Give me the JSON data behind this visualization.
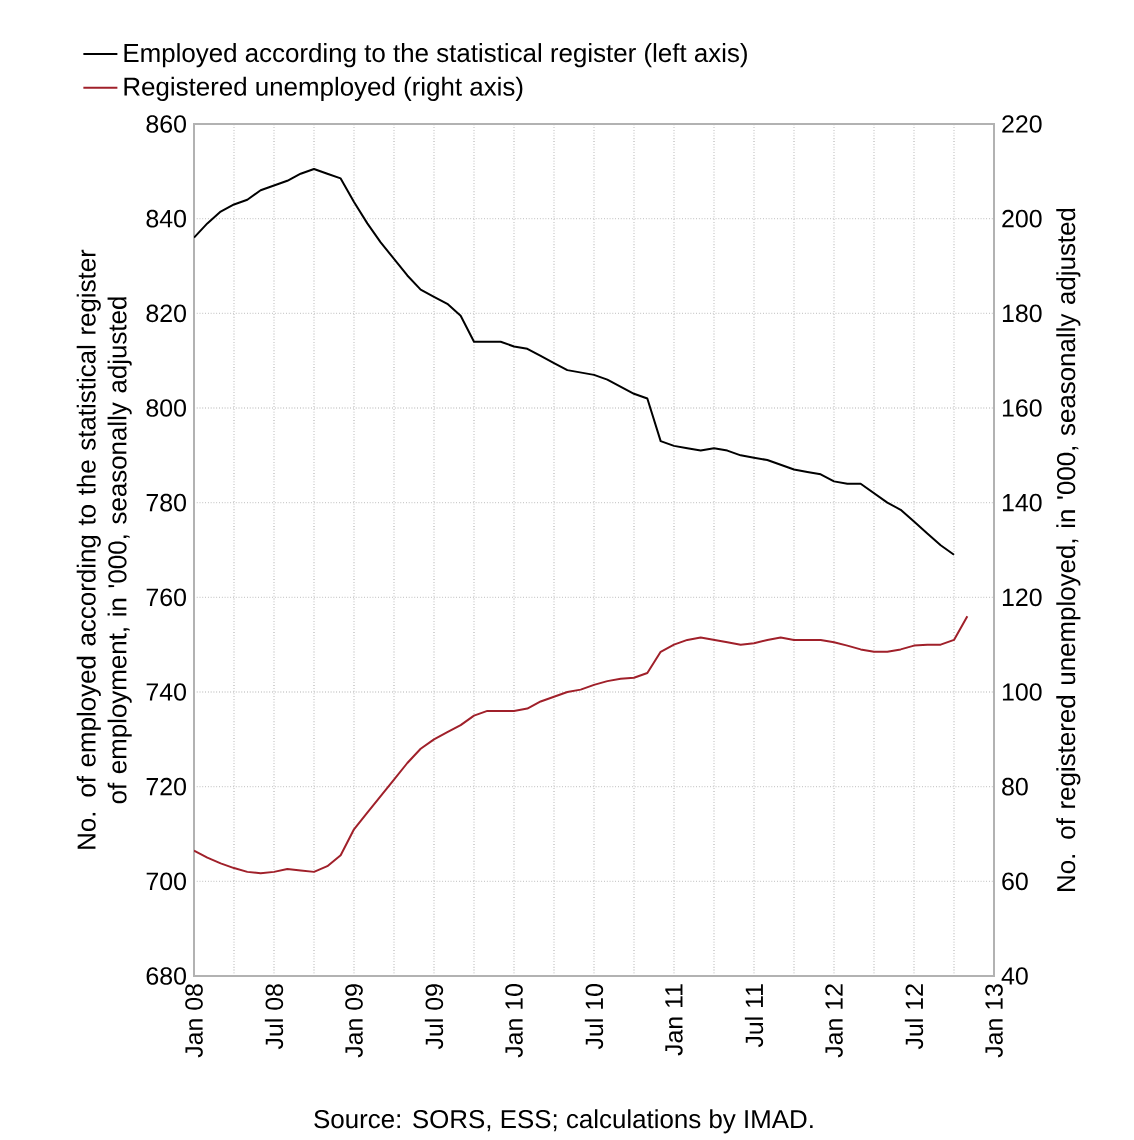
{
  "chart_data": {
    "type": "line",
    "xlim": [
      "2008-01",
      "2013-01"
    ],
    "xticks": [
      {
        "value": "2008-01",
        "label": "Jan 08"
      },
      {
        "value": "2008-04",
        "label": null
      },
      {
        "value": "2008-07",
        "label": "Jul 08"
      },
      {
        "value": "2008-10",
        "label": null
      },
      {
        "value": "2009-01",
        "label": "Jan 09"
      },
      {
        "value": "2009-04",
        "label": null
      },
      {
        "value": "2009-07",
        "label": "Jul 09"
      },
      {
        "value": "2009-10",
        "label": null
      },
      {
        "value": "2010-01",
        "label": "Jan 10"
      },
      {
        "value": "2010-04",
        "label": null
      },
      {
        "value": "2010-07",
        "label": "Jul 10"
      },
      {
        "value": "2010-10",
        "label": null
      },
      {
        "value": "2011-01",
        "label": "Jan 11"
      },
      {
        "value": "2011-04",
        "label": null
      },
      {
        "value": "2011-07",
        "label": "Jul 11"
      },
      {
        "value": "2011-10",
        "label": null
      },
      {
        "value": "2012-01",
        "label": "Jan 12"
      },
      {
        "value": "2012-04",
        "label": null
      },
      {
        "value": "2012-07",
        "label": "Jul 12"
      },
      {
        "value": "2012-10",
        "label": null
      },
      {
        "value": "2013-01",
        "label": "Jan 13"
      }
    ],
    "ylim": [
      680,
      860
    ],
    "yticks": [
      680,
      700,
      720,
      740,
      760,
      780,
      800,
      820,
      840,
      860
    ],
    "y2lim": [
      40,
      220
    ],
    "y2ticks": [
      40,
      60,
      80,
      100,
      120,
      140,
      160,
      180,
      200,
      220
    ],
    "ylabel": "No. of employed according to the statistical register of employment, in '000, seasonally adjusted",
    "y2label": "No. of registered unemployed, in '000, seasonally adjusted",
    "annotations": [
      "Source: SORS, ESS; calculations by IMAD."
    ],
    "grid": true,
    "legend": "top left",
    "marker": "none",
    "line_style": "solid",
    "series": [
      {
        "name": "Employed according to the statistical register (left axis)",
        "color": "#000000",
        "x": [
          "2008-01",
          "2008-02",
          "2008-03",
          "2008-04",
          "2008-05",
          "2008-06",
          "2008-07",
          "2008-08",
          "2008-09",
          "2008-10",
          "2008-11",
          "2008-12",
          "2009-01",
          "2009-02",
          "2009-03",
          "2009-04",
          "2009-05",
          "2009-06",
          "2009-07",
          "2009-08",
          "2009-09",
          "2009-10",
          "2009-11",
          "2009-12",
          "2010-01",
          "2010-02",
          "2010-03",
          "2010-04",
          "2010-05",
          "2010-06",
          "2010-07",
          "2010-08",
          "2010-09",
          "2010-10",
          "2010-11",
          "2010-12",
          "2011-01",
          "2011-02",
          "2011-03",
          "2011-04",
          "2011-05",
          "2011-06",
          "2011-07",
          "2011-08",
          "2011-09",
          "2011-10",
          "2011-11",
          "2011-12",
          "2012-01",
          "2012-02",
          "2012-03",
          "2012-04",
          "2012-05",
          "2012-06",
          "2012-07",
          "2012-08",
          "2012-09",
          "2012-10"
        ],
        "values": [
          836,
          839,
          841.5,
          843,
          844,
          846,
          847,
          848,
          849.5,
          850.5,
          849.5,
          848.5,
          843.5,
          839,
          835,
          831.5,
          828,
          825,
          823.5,
          822,
          819.5,
          814,
          814,
          814,
          813,
          812.5,
          811,
          809.5,
          808,
          807.5,
          807,
          806,
          804.5,
          803,
          802,
          793,
          792,
          791.5,
          791,
          791.5,
          791,
          790,
          789.5,
          789,
          788,
          787,
          786.5,
          786,
          784.5,
          784,
          784,
          782,
          780,
          778.5,
          776,
          773.5,
          771,
          769
        ]
      },
      {
        "name": "Registered unemployed (right axis)",
        "color": "#a0202a",
        "axis": "y2",
        "x": [
          "2008-01",
          "2008-02",
          "2008-03",
          "2008-04",
          "2008-05",
          "2008-06",
          "2008-07",
          "2008-08",
          "2008-09",
          "2008-10",
          "2008-11",
          "2008-12",
          "2009-01",
          "2009-02",
          "2009-03",
          "2009-04",
          "2009-05",
          "2009-06",
          "2009-07",
          "2009-08",
          "2009-09",
          "2009-10",
          "2009-11",
          "2009-12",
          "2010-01",
          "2010-02",
          "2010-03",
          "2010-04",
          "2010-05",
          "2010-06",
          "2010-07",
          "2010-08",
          "2010-09",
          "2010-10",
          "2010-11",
          "2010-12",
          "2011-01",
          "2011-02",
          "2011-03",
          "2011-04",
          "2011-05",
          "2011-06",
          "2011-07",
          "2011-08",
          "2011-09",
          "2011-10",
          "2011-11",
          "2011-12",
          "2012-01",
          "2012-02",
          "2012-03",
          "2012-04",
          "2012-05",
          "2012-06",
          "2012-07",
          "2012-08",
          "2012-09",
          "2012-10",
          "2012-11"
        ],
        "values": [
          66.5,
          65,
          63.8,
          62.8,
          62,
          61.7,
          62,
          62.6,
          62.3,
          62,
          63.2,
          65.5,
          71,
          74.5,
          78,
          81.5,
          85,
          88,
          90,
          91.5,
          93,
          95,
          96,
          96,
          96,
          96.5,
          98,
          99,
          100,
          100.5,
          101.5,
          102.3,
          102.8,
          103,
          104,
          108.5,
          110,
          111,
          111.5,
          111,
          110.5,
          110,
          110.3,
          111,
          111.5,
          111,
          111,
          111,
          110.5,
          109.8,
          109,
          108.5,
          108.5,
          109,
          109.8,
          110,
          110,
          111,
          116
        ]
      }
    ]
  }
}
